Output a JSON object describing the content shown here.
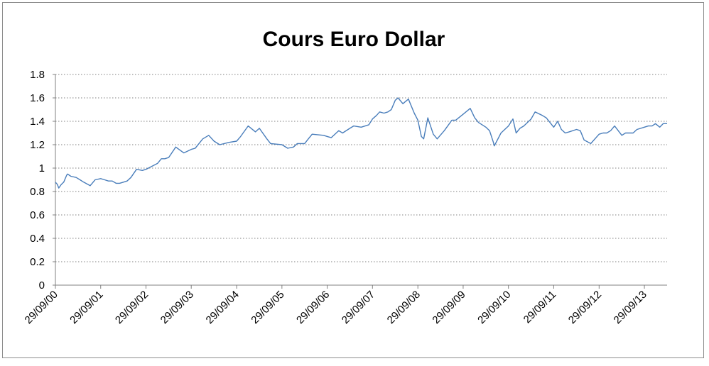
{
  "chart_data": {
    "type": "line",
    "title": "Cours Euro Dollar",
    "xlabel": "",
    "ylabel": "",
    "ylim": [
      0,
      1.8
    ],
    "yticks": [
      "0",
      "0.2",
      "0.4",
      "0.6",
      "0.8",
      "1",
      "1.2",
      "1.4",
      "1.6",
      "1.8"
    ],
    "xlim": [
      "29/09/00",
      "31/03/14"
    ],
    "xticks": [
      "29/09/00",
      "29/09/01",
      "29/09/02",
      "29/09/03",
      "29/09/04",
      "29/09/05",
      "29/09/06",
      "29/09/07",
      "29/09/08",
      "29/09/09",
      "29/09/10",
      "29/09/11",
      "29/09/12",
      "29/09/13"
    ],
    "grid": "horizontal-dotted",
    "legend": "none",
    "line_color": "#4a7ebb",
    "series": [
      {
        "x": [
          "29/09/00",
          "15/10/00",
          "26/10/00",
          "15/11/00",
          "05/12/00",
          "29/12/00",
          "05/01/01",
          "31/01/01",
          "15/03/01",
          "15/04/01",
          "15/05/01",
          "06/07/01",
          "15/08/01",
          "29/09/01",
          "31/10/01",
          "30/11/01",
          "31/12/01",
          "31/01/02",
          "28/02/02",
          "31/03/02",
          "30/04/02",
          "31/05/02",
          "15/07/02",
          "31/08/02",
          "29/09/02",
          "31/12/02",
          "31/01/03",
          "28/02/03",
          "31/03/03",
          "27/05/03",
          "31/07/03",
          "29/09/03",
          "31/10/03",
          "31/12/03",
          "17/02/04",
          "31/03/04",
          "15/05/04",
          "31/07/04",
          "29/09/04",
          "31/10/04",
          "31/12/04",
          "28/02/05",
          "31/03/05",
          "31/05/05",
          "30/06/05",
          "29/09/05",
          "15/11/05",
          "31/12/05",
          "31/01/06",
          "31/03/06",
          "30/04/06",
          "31/05/06",
          "31/08/06",
          "29/09/06",
          "31/10/06",
          "31/12/06",
          "31/01/07",
          "31/03/07",
          "30/04/07",
          "30/06/07",
          "31/08/07",
          "29/09/07",
          "31/10/07",
          "26/11/07",
          "31/12/07",
          "31/01/08",
          "28/02/08",
          "31/03/08",
          "22/04/08",
          "31/05/08",
          "15/07/08",
          "31/08/08",
          "29/09/08",
          "27/10/08",
          "15/11/08",
          "18/12/08",
          "31/01/09",
          "04/03/09",
          "30/04/09",
          "30/06/09",
          "31/07/09",
          "29/09/09",
          "25/11/09",
          "31/12/09",
          "31/01/10",
          "31/03/10",
          "30/04/10",
          "31/05/10",
          "07/06/10",
          "31/07/10",
          "29/09/10",
          "04/11/10",
          "30/11/10",
          "31/12/10",
          "31/01/11",
          "31/03/11",
          "02/05/11",
          "30/06/11",
          "31/07/11",
          "29/09/11",
          "31/10/11",
          "30/11/11",
          "31/12/11",
          "31/01/12",
          "31/03/12",
          "30/04/12",
          "31/05/12",
          "24/07/12",
          "29/09/12",
          "31/10/12",
          "30/11/12",
          "31/12/12",
          "01/02/13",
          "31/03/13",
          "30/04/13",
          "31/05/13",
          "30/06/13",
          "31/07/13",
          "29/09/13",
          "31/10/13",
          "30/11/13",
          "27/12/13",
          "31/01/14",
          "28/02/14",
          "31/03/14"
        ],
        "y": [
          0.88,
          0.86,
          0.83,
          0.86,
          0.88,
          0.94,
          0.95,
          0.93,
          0.92,
          0.9,
          0.88,
          0.85,
          0.9,
          0.91,
          0.9,
          0.89,
          0.89,
          0.87,
          0.87,
          0.88,
          0.89,
          0.92,
          0.99,
          0.98,
          0.99,
          1.04,
          1.08,
          1.08,
          1.09,
          1.18,
          1.13,
          1.16,
          1.17,
          1.25,
          1.28,
          1.23,
          1.2,
          1.22,
          1.23,
          1.27,
          1.36,
          1.31,
          1.34,
          1.25,
          1.21,
          1.2,
          1.17,
          1.18,
          1.21,
          1.21,
          1.25,
          1.29,
          1.28,
          1.27,
          1.26,
          1.32,
          1.3,
          1.34,
          1.36,
          1.35,
          1.37,
          1.42,
          1.45,
          1.48,
          1.47,
          1.48,
          1.5,
          1.58,
          1.6,
          1.55,
          1.59,
          1.47,
          1.41,
          1.27,
          1.25,
          1.43,
          1.29,
          1.25,
          1.32,
          1.41,
          1.41,
          1.46,
          1.51,
          1.43,
          1.39,
          1.35,
          1.32,
          1.22,
          1.19,
          1.3,
          1.36,
          1.42,
          1.3,
          1.34,
          1.36,
          1.42,
          1.48,
          1.45,
          1.43,
          1.35,
          1.4,
          1.33,
          1.3,
          1.31,
          1.33,
          1.32,
          1.24,
          1.21,
          1.29,
          1.3,
          1.3,
          1.32,
          1.36,
          1.28,
          1.3,
          1.3,
          1.3,
          1.33,
          1.35,
          1.36,
          1.36,
          1.38,
          1.35,
          1.38,
          1.38
        ]
      }
    ]
  }
}
